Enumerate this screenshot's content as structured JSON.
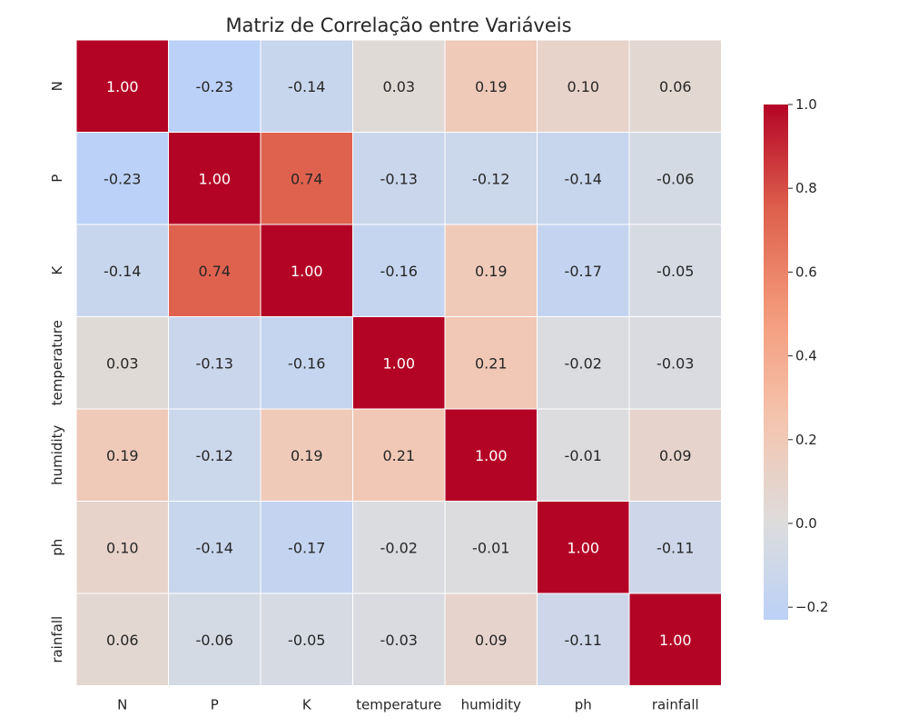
{
  "chart_data": {
    "type": "heatmap",
    "title": "Matriz de Correlação entre Variáveis",
    "x_categories": [
      "N",
      "P",
      "K",
      "temperature",
      "humidity",
      "ph",
      "rainfall"
    ],
    "y_categories": [
      "N",
      "P",
      "K",
      "temperature",
      "humidity",
      "ph",
      "rainfall"
    ],
    "values": [
      [
        1.0,
        -0.23,
        -0.14,
        0.03,
        0.19,
        0.1,
        0.06
      ],
      [
        -0.23,
        1.0,
        0.74,
        -0.13,
        -0.12,
        -0.14,
        -0.06
      ],
      [
        -0.14,
        0.74,
        1.0,
        -0.16,
        0.19,
        -0.17,
        -0.05
      ],
      [
        0.03,
        -0.13,
        -0.16,
        1.0,
        0.21,
        -0.02,
        -0.03
      ],
      [
        0.19,
        -0.12,
        0.19,
        0.21,
        1.0,
        -0.01,
        0.09
      ],
      [
        0.1,
        -0.14,
        -0.17,
        -0.02,
        -0.01,
        1.0,
        -0.11
      ],
      [
        0.06,
        -0.06,
        -0.05,
        -0.03,
        0.09,
        -0.11,
        1.0
      ]
    ],
    "labels": [
      [
        "1.00",
        "-0.23",
        "-0.14",
        "0.03",
        "0.19",
        "0.10",
        "0.06"
      ],
      [
        "-0.23",
        "1.00",
        "0.74",
        "-0.13",
        "-0.12",
        "-0.14",
        "-0.06"
      ],
      [
        "-0.14",
        "0.74",
        "1.00",
        "-0.16",
        "0.19",
        "-0.17",
        "-0.05"
      ],
      [
        "0.03",
        "-0.13",
        "-0.16",
        "1.00",
        "0.21",
        "-0.02",
        "-0.03"
      ],
      [
        "0.19",
        "-0.12",
        "0.19",
        "0.21",
        "1.00",
        "-0.01",
        "0.09"
      ],
      [
        "0.10",
        "-0.14",
        "-0.17",
        "-0.02",
        "-0.01",
        "1.00",
        "-0.11"
      ],
      [
        "0.06",
        "-0.06",
        "-0.05",
        "-0.03",
        "0.09",
        "-0.11",
        "1.00"
      ]
    ],
    "colormap": "coolwarm",
    "color_range": [
      -0.23,
      1.0
    ],
    "center": 0,
    "colorbar": {
      "ticks": [
        1.0,
        0.8,
        0.6,
        0.4,
        0.2,
        0.0,
        -0.2
      ],
      "tick_labels": [
        "1.0",
        "0.8",
        "0.6",
        "0.4",
        "0.2",
        "0.0",
        "−0.2"
      ],
      "placement": "right"
    },
    "grid_lines": "white"
  }
}
